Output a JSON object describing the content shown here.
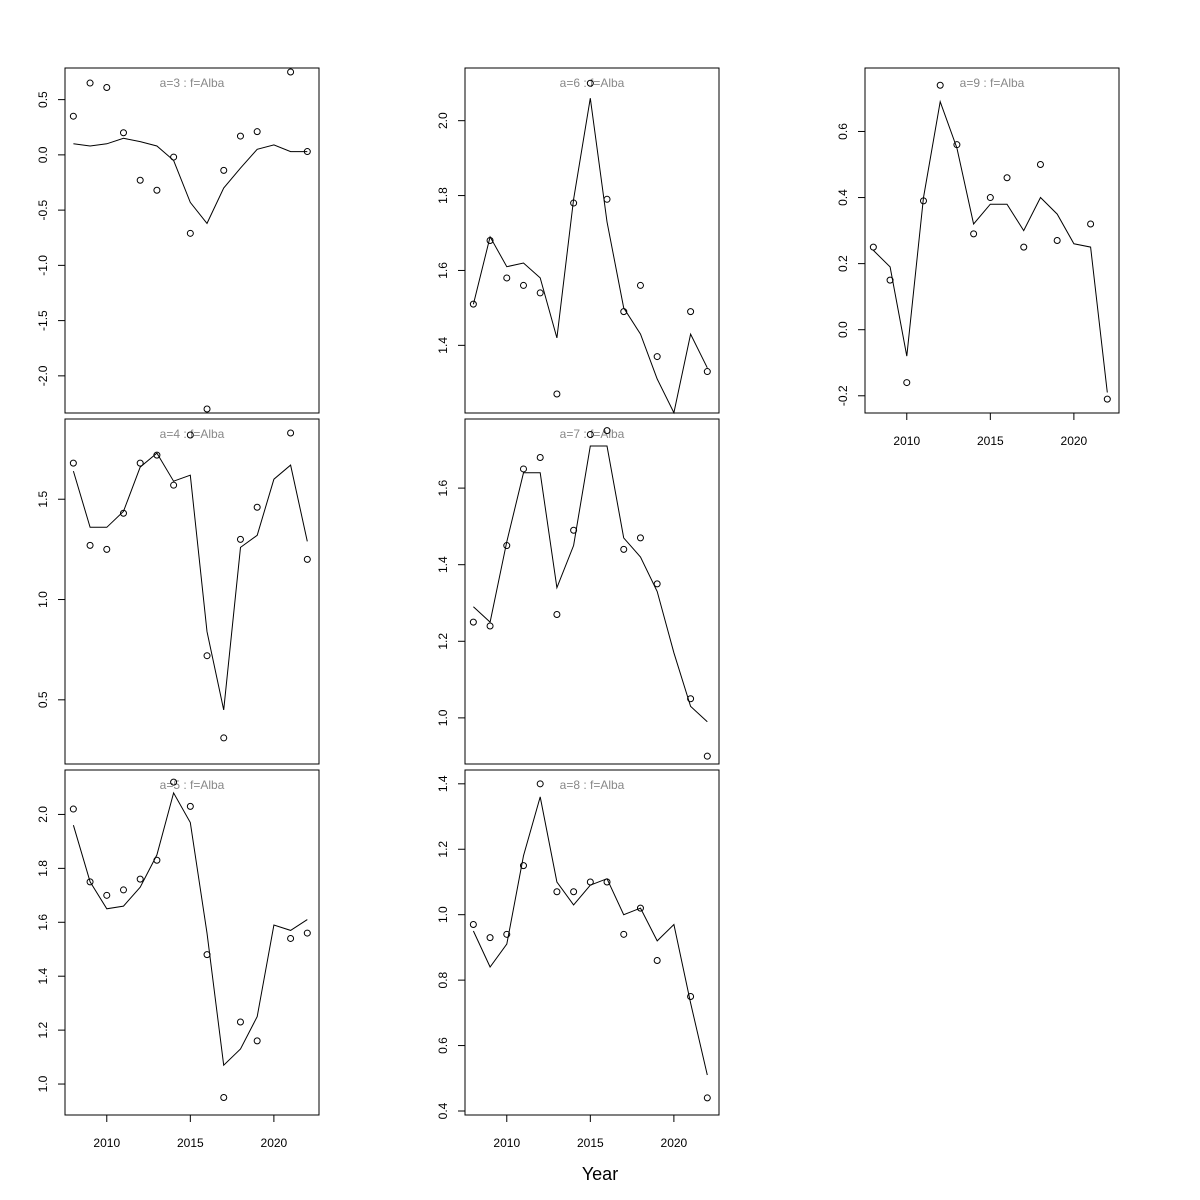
{
  "chart_data": {
    "type": "line",
    "layout": "3x3 small multiples, column-major",
    "xlabel": "Year",
    "x_ticks": [
      2010,
      2015,
      2020
    ],
    "panels": [
      {
        "title": "a=3  :  f=Alba",
        "ylim": [
          -2.3,
          0.75
        ],
        "y_ticks": [
          0.5,
          0.0,
          -0.5,
          -1.0,
          -1.5,
          -2.0
        ],
        "y_tick_labels": [
          "0.5",
          "0.0",
          "-0.5",
          "-1.0",
          "-1.5",
          "-2.0"
        ],
        "show_x_ticks": false,
        "fit": {
          "x": [
            2008,
            2009,
            2010,
            2011,
            2012,
            2013,
            2014,
            2015,
            2016,
            2017,
            2018,
            2019,
            2020,
            2021,
            2022
          ],
          "y": [
            0.1,
            0.08,
            0.1,
            0.15,
            0.12,
            0.08,
            -0.05,
            -0.43,
            -0.62,
            -0.3,
            -0.12,
            0.05,
            0.09,
            0.03,
            0.03
          ]
        },
        "points": {
          "x": [
            2008,
            2009,
            2010,
            2011,
            2012,
            2013,
            2014,
            2015,
            2016,
            2017,
            2018,
            2019,
            2021,
            2022
          ],
          "y": [
            0.35,
            0.65,
            0.61,
            0.2,
            -0.23,
            -0.32,
            -0.02,
            -0.71,
            -2.3,
            -0.14,
            0.17,
            0.21,
            0.75,
            0.03
          ]
        }
      },
      {
        "title": "a=4  :  f=Alba",
        "ylim": [
          0.2,
          1.88
        ],
        "y_ticks": [
          1.5,
          1.0,
          0.5
        ],
        "y_tick_labels": [
          "1.5",
          "1.0",
          "0.5"
        ],
        "show_x_ticks": false,
        "fit": {
          "x": [
            2008,
            2009,
            2010,
            2011,
            2012,
            2013,
            2014,
            2015,
            2016,
            2017,
            2018,
            2019,
            2020,
            2021,
            2022
          ],
          "y": [
            1.64,
            1.36,
            1.36,
            1.44,
            1.66,
            1.73,
            1.59,
            1.62,
            0.84,
            0.45,
            1.26,
            1.32,
            1.6,
            1.67,
            1.29
          ]
        },
        "points": {
          "x": [
            2008,
            2009,
            2010,
            2011,
            2012,
            2013,
            2014,
            2015,
            2016,
            2017,
            2018,
            2019,
            2021,
            2022
          ],
          "y": [
            1.68,
            1.27,
            1.25,
            1.43,
            1.68,
            1.72,
            1.57,
            1.82,
            0.72,
            0.31,
            1.3,
            1.46,
            1.83,
            1.2
          ]
        }
      },
      {
        "title": "a=5  :  f=Alba",
        "ylim": [
          0.9,
          2.15
        ],
        "y_ticks": [
          2.0,
          1.8,
          1.6,
          1.4,
          1.2,
          1.0
        ],
        "y_tick_labels": [
          "2.0",
          "1.8",
          "1.6",
          "1.4",
          "1.2",
          "1.0"
        ],
        "show_x_ticks": true,
        "fit": {
          "x": [
            2008,
            2009,
            2010,
            2011,
            2012,
            2013,
            2014,
            2015,
            2016,
            2017,
            2018,
            2019,
            2020,
            2021,
            2022
          ],
          "y": [
            1.96,
            1.75,
            1.65,
            1.66,
            1.73,
            1.85,
            2.08,
            1.97,
            1.56,
            1.07,
            1.13,
            1.25,
            1.59,
            1.57,
            1.61
          ]
        },
        "points": {
          "x": [
            2008,
            2009,
            2010,
            2011,
            2012,
            2013,
            2014,
            2015,
            2016,
            2017,
            2018,
            2019,
            2021,
            2022
          ],
          "y": [
            2.02,
            1.75,
            1.7,
            1.72,
            1.76,
            1.83,
            2.12,
            2.03,
            1.48,
            0.95,
            1.23,
            1.16,
            1.54,
            1.56
          ]
        }
      },
      {
        "title": "a=6  :  f=Alba",
        "ylim": [
          1.23,
          2.13
        ],
        "y_ticks": [
          2.0,
          1.8,
          1.6,
          1.4
        ],
        "y_tick_labels": [
          "2.0",
          "1.8",
          "1.6",
          "1.4"
        ],
        "show_x_ticks": false,
        "fit": {
          "x": [
            2008,
            2009,
            2010,
            2011,
            2012,
            2013,
            2014,
            2015,
            2016,
            2017,
            2018,
            2019,
            2020,
            2021,
            2022
          ],
          "y": [
            1.51,
            1.69,
            1.61,
            1.62,
            1.58,
            1.42,
            1.79,
            2.06,
            1.73,
            1.5,
            1.43,
            1.31,
            1.22,
            1.43,
            1.34
          ]
        },
        "points": {
          "x": [
            2008,
            2009,
            2010,
            2011,
            2012,
            2013,
            2014,
            2015,
            2016,
            2017,
            2018,
            2019,
            2021,
            2022
          ],
          "y": [
            1.51,
            1.68,
            1.58,
            1.56,
            1.54,
            1.27,
            1.78,
            2.1,
            1.79,
            1.49,
            1.56,
            1.37,
            1.49,
            1.33
          ]
        }
      },
      {
        "title": "a=7  :  f=Alba",
        "ylim": [
          0.89,
          1.77
        ],
        "y_ticks": [
          1.6,
          1.4,
          1.2,
          1.0
        ],
        "y_tick_labels": [
          "1.6",
          "1.4",
          "1.2",
          "1.0"
        ],
        "show_x_ticks": false,
        "fit": {
          "x": [
            2008,
            2009,
            2010,
            2011,
            2012,
            2013,
            2014,
            2015,
            2016,
            2017,
            2018,
            2019,
            2020,
            2021,
            2022
          ],
          "y": [
            1.29,
            1.25,
            1.46,
            1.64,
            1.64,
            1.34,
            1.45,
            1.71,
            1.71,
            1.47,
            1.42,
            1.33,
            1.17,
            1.03,
            0.99
          ]
        },
        "points": {
          "x": [
            2008,
            2009,
            2010,
            2011,
            2012,
            2013,
            2014,
            2015,
            2016,
            2017,
            2018,
            2019,
            2021,
            2022
          ],
          "y": [
            1.25,
            1.24,
            1.45,
            1.65,
            1.68,
            1.27,
            1.49,
            1.74,
            1.75,
            1.44,
            1.47,
            1.35,
            1.05,
            0.9
          ]
        }
      },
      {
        "title": "a=8  :  f=Alba",
        "ylim": [
          0.4,
          1.43
        ],
        "y_ticks": [
          1.4,
          1.2,
          1.0,
          0.8,
          0.6,
          0.4
        ],
        "y_tick_labels": [
          "1.4",
          "1.2",
          "1.0",
          "0.8",
          "0.6",
          "0.4"
        ],
        "show_x_ticks": true,
        "fit": {
          "x": [
            2008,
            2009,
            2010,
            2011,
            2012,
            2013,
            2014,
            2015,
            2016,
            2017,
            2018,
            2019,
            2020,
            2021,
            2022
          ],
          "y": [
            0.95,
            0.84,
            0.91,
            1.18,
            1.36,
            1.1,
            1.03,
            1.09,
            1.11,
            1.0,
            1.02,
            0.92,
            0.97,
            0.73,
            0.51
          ]
        },
        "points": {
          "x": [
            2008,
            2009,
            2010,
            2011,
            2012,
            2013,
            2014,
            2015,
            2016,
            2017,
            2018,
            2019,
            2021,
            2022
          ],
          "y": [
            0.97,
            0.93,
            0.94,
            1.15,
            1.4,
            1.07,
            1.07,
            1.1,
            1.1,
            0.94,
            1.02,
            0.86,
            0.75,
            0.44
          ]
        }
      },
      {
        "title": "a=9  :  f=Alba",
        "ylim": [
          -0.24,
          0.78
        ],
        "y_ticks": [
          0.6,
          0.4,
          0.2,
          0.0,
          -0.2
        ],
        "y_tick_labels": [
          "0.6",
          "0.4",
          "0.2",
          "0.0",
          "-0.2"
        ],
        "show_x_ticks": true,
        "fit": {
          "x": [
            2008,
            2009,
            2010,
            2011,
            2012,
            2013,
            2014,
            2015,
            2016,
            2017,
            2018,
            2019,
            2020,
            2021,
            2022
          ],
          "y": [
            0.24,
            0.19,
            -0.08,
            0.4,
            0.69,
            0.55,
            0.32,
            0.38,
            0.38,
            0.3,
            0.4,
            0.35,
            0.26,
            0.25,
            -0.19
          ]
        },
        "points": {
          "x": [
            2008,
            2009,
            2010,
            2011,
            2012,
            2013,
            2014,
            2015,
            2016,
            2017,
            2018,
            2019,
            2021,
            2022
          ],
          "y": [
            0.25,
            0.15,
            -0.16,
            0.39,
            0.74,
            0.56,
            0.29,
            0.4,
            0.46,
            0.25,
            0.5,
            0.27,
            0.32,
            -0.21
          ]
        }
      }
    ]
  }
}
